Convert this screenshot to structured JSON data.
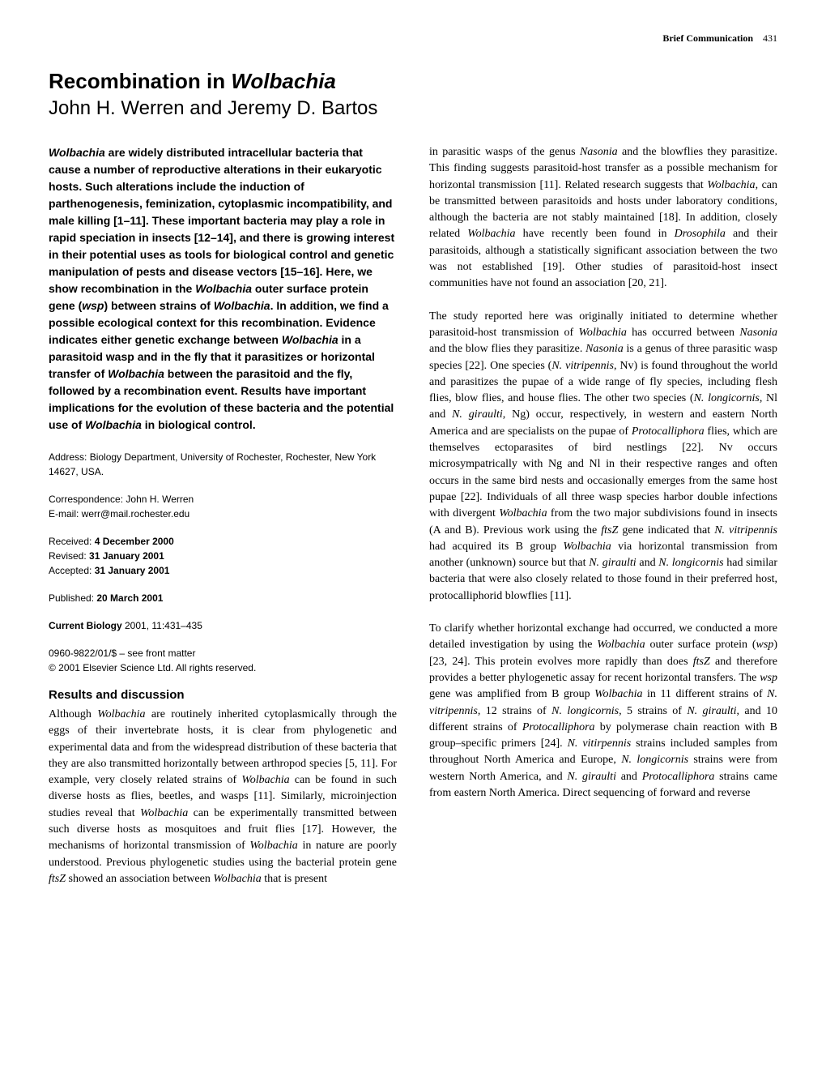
{
  "header": {
    "section_label": "Brief Communication",
    "page_number": "431"
  },
  "title_line1": "Recombination in ",
  "title_italic": "Wolbachia",
  "authors": "John H. Werren and Jeremy D. Bartos",
  "abstract_parts": [
    {
      "text": "Wolbachia",
      "italic": true,
      "bold": true
    },
    {
      "text": " are widely distributed intracellular bacteria that cause a number of reproductive alterations in their eukaryotic hosts. Such alterations include the induction of parthenogenesis, feminization, cytoplasmic incompatibility, and male killing [1–11]. These important bacteria may play a role in rapid speciation in insects [12–14], and there is growing interest in their potential uses as tools for biological control and genetic manipulation of pests and disease vectors [15–16]. Here, we show recombination in the ",
      "italic": false
    },
    {
      "text": "Wolbachia",
      "italic": true,
      "bold": true
    },
    {
      "text": " outer surface protein gene (",
      "italic": false
    },
    {
      "text": "wsp",
      "italic": true,
      "bold": true
    },
    {
      "text": ") between strains of ",
      "italic": false
    },
    {
      "text": "Wolbachia",
      "italic": true,
      "bold": true
    },
    {
      "text": ". In addition, we find a possible ecological context for this recombination. Evidence indicates either genetic exchange between ",
      "italic": false
    },
    {
      "text": "Wolbachia",
      "italic": true,
      "bold": true
    },
    {
      "text": " in a parasitoid wasp and in the fly that it parasitizes or horizontal transfer of ",
      "italic": false
    },
    {
      "text": "Wolbachia",
      "italic": true,
      "bold": true
    },
    {
      "text": " between the parasitoid and the fly, followed by a recombination event. Results have important implications for the evolution of these bacteria and the potential use of ",
      "italic": false
    },
    {
      "text": "Wolbachia",
      "italic": true,
      "bold": true
    },
    {
      "text": " in biological control.",
      "italic": false
    }
  ],
  "address": "Address: Biology Department, University of Rochester, Rochester, New York 14627, USA.",
  "correspondence_label": "Correspondence: John H. Werren",
  "email": "E-mail: werr@mail.rochester.edu",
  "received_label": "Received: ",
  "received_date": "4 December 2000",
  "revised_label": "Revised: ",
  "revised_date": "31 January 2001",
  "accepted_label": "Accepted: ",
  "accepted_date": "31 January 2001",
  "published_label": "Published: ",
  "published_date": "20 March 2001",
  "journal_label": "Current Biology",
  "journal_info": " 2001, 11:431–435",
  "issn": "0960-9822/01/$ – see front matter",
  "copyright": "© 2001 Elsevier Science Ltd. All rights reserved.",
  "section_heading": "Results and discussion",
  "body_left_parts": [
    {
      "text": "Although ",
      "italic": false
    },
    {
      "text": "Wolbachia",
      "italic": true
    },
    {
      "text": " are routinely inherited cytoplasmically through the eggs of their invertebrate hosts, it is clear from phylogenetic and experimental data and from the widespread distribution of these bacteria that they are also transmitted horizontally between arthropod species [5, 11]. For example, very closely related strains of ",
      "italic": false
    },
    {
      "text": "Wolbachia",
      "italic": true
    },
    {
      "text": " can be found in such diverse hosts as flies, beetles, and wasps [11]. Similarly, microinjection studies reveal that ",
      "italic": false
    },
    {
      "text": "Wolbachia",
      "italic": true
    },
    {
      "text": " can be experimentally transmitted between such diverse hosts as mosquitoes and fruit flies [17]. However, the mechanisms of horizontal transmission of ",
      "italic": false
    },
    {
      "text": "Wolbachia",
      "italic": true
    },
    {
      "text": " in nature are poorly understood. Previous phylogenetic studies using the bacterial protein gene ",
      "italic": false
    },
    {
      "text": "ftsZ",
      "italic": true
    },
    {
      "text": " showed an association between ",
      "italic": false
    },
    {
      "text": "Wolbachia",
      "italic": true
    },
    {
      "text": " that is present",
      "italic": false
    }
  ],
  "body_right_p1_parts": [
    {
      "text": "in parasitic wasps of the genus ",
      "italic": false
    },
    {
      "text": "Nasonia",
      "italic": true
    },
    {
      "text": " and the blowflies they parasitize. This finding suggests parasitoid-host transfer as a possible mechanism for horizontal transmission [11]. Related research suggests that ",
      "italic": false
    },
    {
      "text": "Wolbachia",
      "italic": true
    },
    {
      "text": ", can be transmitted between parasitoids and hosts under laboratory conditions, although the bacteria are not stably maintained [18]. In addition, closely related ",
      "italic": false
    },
    {
      "text": "Wolbachia",
      "italic": true
    },
    {
      "text": " have recently been found in ",
      "italic": false
    },
    {
      "text": "Drosophila",
      "italic": true
    },
    {
      "text": " and their parasitoids, although a statistically significant association between the two was not established [19]. Other studies of parasitoid-host insect communities have not found an association [20, 21].",
      "italic": false
    }
  ],
  "body_right_p2_parts": [
    {
      "text": "The study reported here was originally initiated to determine whether parasitoid-host transmission of ",
      "italic": false
    },
    {
      "text": "Wolbachia",
      "italic": true
    },
    {
      "text": " has occurred between ",
      "italic": false
    },
    {
      "text": "Nasonia",
      "italic": true
    },
    {
      "text": " and the blow flies they parasitize. ",
      "italic": false
    },
    {
      "text": "Nasonia",
      "italic": true
    },
    {
      "text": " is a genus of three parasitic wasp species [22]. One species (",
      "italic": false
    },
    {
      "text": "N. vitripennis",
      "italic": true
    },
    {
      "text": ", Nv) is found throughout the world and parasitizes the pupae of a wide range of fly species, including flesh flies, blow flies, and house flies. The other two species (",
      "italic": false
    },
    {
      "text": "N. longicornis",
      "italic": true
    },
    {
      "text": ", Nl and ",
      "italic": false
    },
    {
      "text": "N. giraulti",
      "italic": true
    },
    {
      "text": ", Ng) occur, respectively, in western and eastern North America and are specialists on the pupae of ",
      "italic": false
    },
    {
      "text": "Protocalliphora",
      "italic": true
    },
    {
      "text": " flies, which are themselves ectoparasites of bird nestlings [22]. Nv occurs microsympatrically with Ng and Nl in their respective ranges and often occurs in the same bird nests and occasionally emerges from the same host pupae [22]. Individuals of all three wasp species harbor double infections with divergent ",
      "italic": false
    },
    {
      "text": "Wolbachia",
      "italic": true
    },
    {
      "text": " from the two major subdivisions found in insects (A and B). Previous work using the ",
      "italic": false
    },
    {
      "text": "ftsZ",
      "italic": true
    },
    {
      "text": " gene indicated that ",
      "italic": false
    },
    {
      "text": "N. vitripennis",
      "italic": true
    },
    {
      "text": " had acquired its B group ",
      "italic": false
    },
    {
      "text": "Wolbachia",
      "italic": true
    },
    {
      "text": " via horizontal transmission from another (unknown) source but that ",
      "italic": false
    },
    {
      "text": "N. giraulti",
      "italic": true
    },
    {
      "text": " and ",
      "italic": false
    },
    {
      "text": "N. longicornis",
      "italic": true
    },
    {
      "text": " had similar bacteria that were also closely related to those found in their preferred host, protocalliphorid blowflies [11].",
      "italic": false
    }
  ],
  "body_right_p3_parts": [
    {
      "text": "To clarify whether horizontal exchange had occurred, we conducted a more detailed investigation by using the ",
      "italic": false
    },
    {
      "text": "Wolbachia",
      "italic": true
    },
    {
      "text": " outer surface protein (",
      "italic": false
    },
    {
      "text": "wsp",
      "italic": true
    },
    {
      "text": ") [23, 24]. This protein evolves more rapidly than does ",
      "italic": false
    },
    {
      "text": "ftsZ",
      "italic": true
    },
    {
      "text": " and therefore provides a better phylogenetic assay for recent horizontal transfers. The ",
      "italic": false
    },
    {
      "text": "wsp",
      "italic": true
    },
    {
      "text": " gene was amplified from B group ",
      "italic": false
    },
    {
      "text": "Wolbachia",
      "italic": true
    },
    {
      "text": " in 11 different strains of ",
      "italic": false
    },
    {
      "text": "N. vitripennis",
      "italic": true
    },
    {
      "text": ", 12 strains of ",
      "italic": false
    },
    {
      "text": "N. longicornis",
      "italic": true
    },
    {
      "text": ", 5 strains of ",
      "italic": false
    },
    {
      "text": "N. giraulti",
      "italic": true
    },
    {
      "text": ", and 10 different strains of ",
      "italic": false
    },
    {
      "text": "Protocalliphora",
      "italic": true
    },
    {
      "text": " by polymerase chain reaction with B group–specific primers [24]. ",
      "italic": false
    },
    {
      "text": "N. vitirpennis",
      "italic": true
    },
    {
      "text": " strains included samples from throughout North America and Europe, ",
      "italic": false
    },
    {
      "text": "N. longicornis",
      "italic": true
    },
    {
      "text": " strains were from western North America, and ",
      "italic": false
    },
    {
      "text": "N. giraulti",
      "italic": true
    },
    {
      "text": " and ",
      "italic": false
    },
    {
      "text": "Protocalliphora",
      "italic": true
    },
    {
      "text": " strains came from eastern North America. Direct sequencing of forward and reverse",
      "italic": false
    }
  ]
}
